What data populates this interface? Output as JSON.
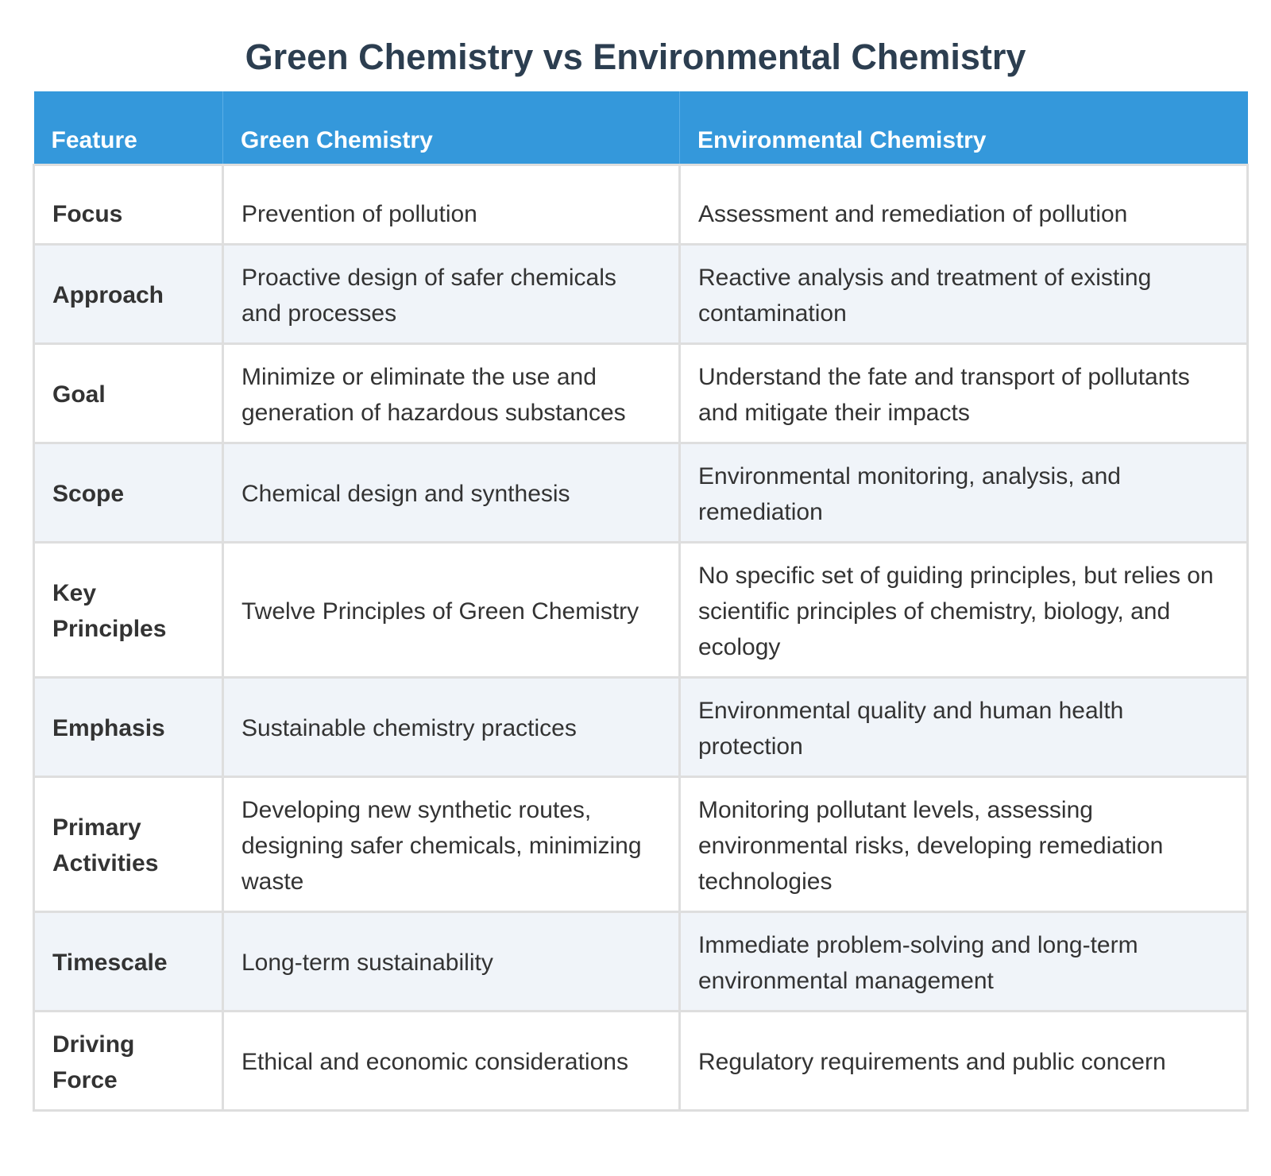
{
  "title": "Green Chemistry vs Environmental Chemistry",
  "colors": {
    "header_bg": "#3498db",
    "title_text": "#2c3e50",
    "alt_row_bg": "#f0f4f9",
    "border": "#dedede"
  },
  "table": {
    "headers": [
      "Feature",
      "Green Chemistry",
      "Environmental Chemistry"
    ],
    "rows": [
      {
        "feature": "Focus",
        "green": "Prevention of pollution",
        "environmental": "Assessment and remediation of pollution"
      },
      {
        "feature": "Approach",
        "green": "Proactive design of safer chemicals and processes",
        "environmental": "Reactive analysis and treatment of existing contamination"
      },
      {
        "feature": "Goal",
        "green": "Minimize or eliminate the use and generation of hazardous substances",
        "environmental": "Understand the fate and transport of pollutants and mitigate their impacts"
      },
      {
        "feature": "Scope",
        "green": "Chemical design and synthesis",
        "environmental": "Environmental monitoring, analysis, and remediation"
      },
      {
        "feature": "Key Principles",
        "green": "Twelve Principles of Green Chemistry",
        "environmental": "No specific set of guiding principles, but relies on scientific principles of chemistry, biology, and ecology"
      },
      {
        "feature": "Emphasis",
        "green": "Sustainable chemistry practices",
        "environmental": "Environmental quality and human health protection"
      },
      {
        "feature": "Primary Activities",
        "green": "Developing new synthetic routes, designing safer chemicals, minimizing waste",
        "environmental": "Monitoring pollutant levels, assessing environmental risks, developing remediation technologies"
      },
      {
        "feature": "Timescale",
        "green": "Long-term sustainability",
        "environmental": "Immediate problem-solving and long-term environmental management"
      },
      {
        "feature": "Driving Force",
        "green": "Ethical and economic considerations",
        "environmental": "Regulatory requirements and public concern"
      }
    ]
  }
}
